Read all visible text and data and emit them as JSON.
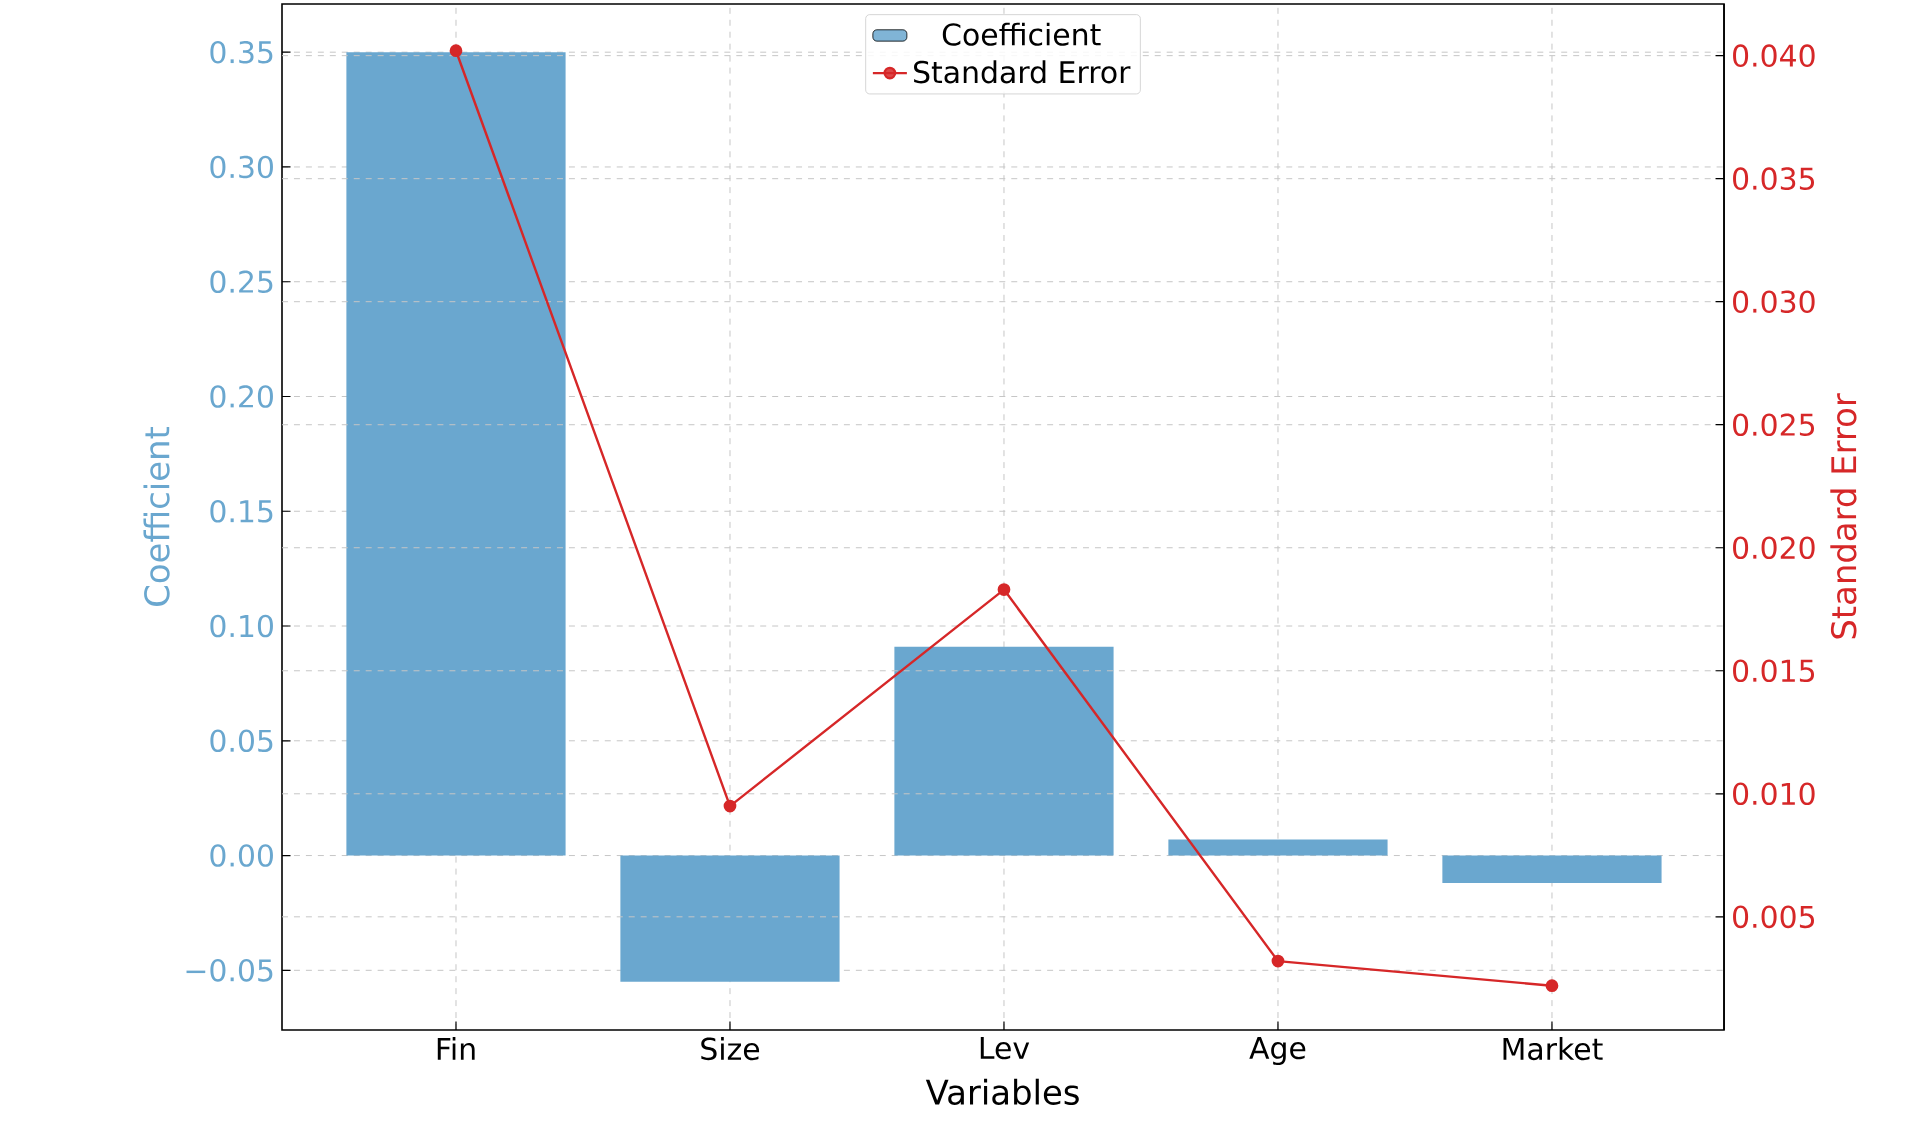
{
  "chart_data": {
    "type": "bar",
    "xlabel": "Variables",
    "ylabel": "Coefficient",
    "y2label": "Standard Error",
    "categories": [
      "Fin",
      "Size",
      "Lev",
      "Age",
      "Market"
    ],
    "series": [
      {
        "name": "Coefficient",
        "color": "#6aa7cf",
        "values": [
          0.35,
          -0.055,
          0.091,
          0.007,
          -0.012
        ]
      },
      {
        "name": "Standard Error",
        "type": "line",
        "axis": "y2",
        "color": "#d62728",
        "values": [
          0.0402,
          0.0095,
          0.0183,
          0.0032,
          0.0022
        ]
      }
    ],
    "ylim": [
      -0.076,
      0.371
    ],
    "yticks": [
      {
        "value": -0.05,
        "label": "−0.05"
      },
      {
        "value": 0,
        "label": "0.00"
      },
      {
        "value": 0.05,
        "label": "0.05"
      },
      {
        "value": 0.1,
        "label": "0.10"
      },
      {
        "value": 0.15,
        "label": "0.15"
      },
      {
        "value": 0.2,
        "label": "0.20"
      },
      {
        "value": 0.25,
        "label": "0.25"
      },
      {
        "value": 0.3,
        "label": "0.30"
      },
      {
        "value": 0.35,
        "label": "0.35"
      }
    ],
    "y2lim": [
      0.0004,
      0.0421
    ],
    "y2ticks": [
      {
        "value": 0.005,
        "label": "0.005"
      },
      {
        "value": 0.01,
        "label": "0.010"
      },
      {
        "value": 0.015,
        "label": "0.015"
      },
      {
        "value": 0.02,
        "label": "0.020"
      },
      {
        "value": 0.025,
        "label": "0.025"
      },
      {
        "value": 0.03,
        "label": "0.030"
      },
      {
        "value": 0.035,
        "label": "0.035"
      },
      {
        "value": 0.04,
        "label": "0.040"
      }
    ],
    "grid": true,
    "legend": "top",
    "marker": "circle",
    "line_style": "solid"
  }
}
